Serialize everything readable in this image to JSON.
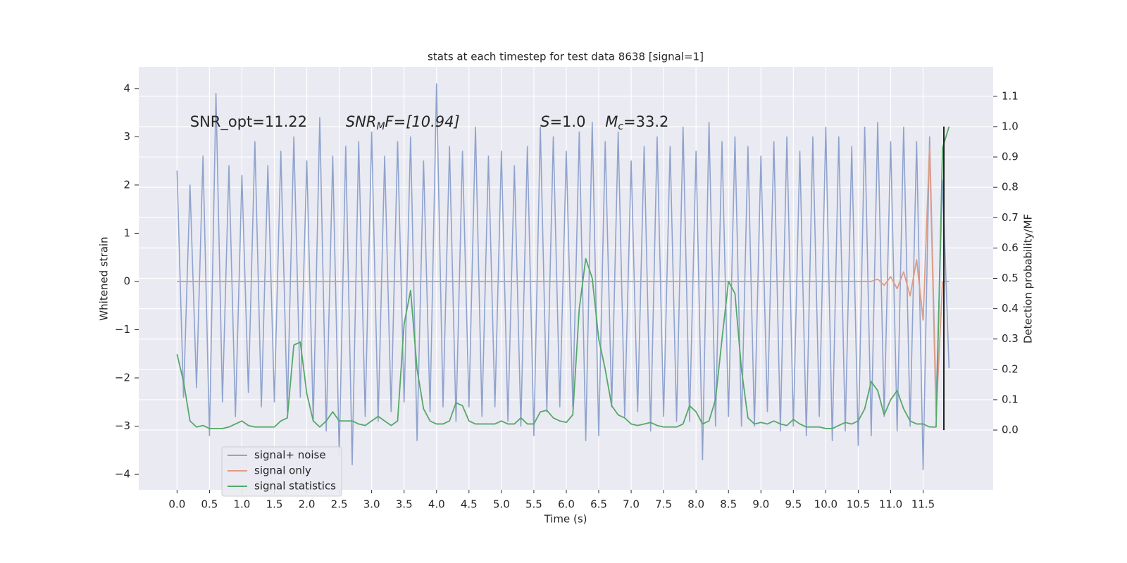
{
  "chart_data": {
    "type": "line",
    "title": "stats at each timestep for test data 8638 [signal=1]",
    "xlabel": "Time (s)",
    "ylabel": "Whitened strain",
    "y2label": "Detection probability/MF",
    "annotations": [
      {
        "text": "SNR_opt=11.22",
        "x": 0.2,
        "y": 3.3
      },
      {
        "main": "SNR",
        "sub": "M",
        "tail": "F=[10.94]",
        "x": 2.6,
        "y": 3.3
      },
      {
        "main": "S",
        "tail": "=1.0",
        "x": 5.6,
        "y": 3.3
      },
      {
        "main": "M",
        "sub": "c",
        "tail": "=33.2",
        "x": 6.6,
        "y": 3.3
      }
    ],
    "x": [
      0.0,
      0.1,
      0.2,
      0.3,
      0.4,
      0.5,
      0.6,
      0.7,
      0.8,
      0.9,
      1.0,
      1.1,
      1.2,
      1.3,
      1.4,
      1.5,
      1.6,
      1.7,
      1.8,
      1.9,
      2.0,
      2.1,
      2.2,
      2.3,
      2.4,
      2.5,
      2.6,
      2.7,
      2.8,
      2.9,
      3.0,
      3.1,
      3.2,
      3.3,
      3.4,
      3.5,
      3.6,
      3.7,
      3.8,
      3.9,
      4.0,
      4.1,
      4.2,
      4.3,
      4.4,
      4.5,
      4.6,
      4.7,
      4.8,
      4.9,
      5.0,
      5.1,
      5.2,
      5.3,
      5.4,
      5.5,
      5.6,
      5.7,
      5.8,
      5.9,
      6.0,
      6.1,
      6.2,
      6.3,
      6.4,
      6.5,
      6.6,
      6.7,
      6.8,
      6.9,
      7.0,
      7.1,
      7.2,
      7.3,
      7.4,
      7.5,
      7.6,
      7.7,
      7.8,
      7.9,
      8.0,
      8.1,
      8.2,
      8.3,
      8.4,
      8.5,
      8.6,
      8.7,
      8.8,
      8.9,
      9.0,
      9.1,
      9.2,
      9.3,
      9.4,
      9.5,
      9.6,
      9.7,
      9.8,
      9.9,
      10.0,
      10.1,
      10.2,
      10.3,
      10.4,
      10.5,
      10.6,
      10.7,
      10.8,
      10.9,
      11.0,
      11.1,
      11.2,
      11.3,
      11.4,
      11.5,
      11.6,
      11.7,
      11.8,
      11.9
    ],
    "series": [
      {
        "name": "signal+ noise",
        "color": "#8fa3cd",
        "axis": "y",
        "values": [
          2.3,
          -2.4,
          2.0,
          -2.2,
          2.6,
          -3.2,
          3.9,
          -2.5,
          2.4,
          -2.8,
          2.2,
          -2.3,
          2.9,
          -2.6,
          2.4,
          -2.5,
          2.7,
          -2.7,
          3.0,
          -2.4,
          2.5,
          -2.9,
          3.4,
          -3.1,
          2.6,
          -3.6,
          2.8,
          -3.8,
          2.9,
          -2.8,
          3.1,
          -2.9,
          2.6,
          -2.7,
          2.9,
          -2.5,
          3.0,
          -3.3,
          2.5,
          -2.7,
          4.1,
          -2.6,
          2.8,
          -2.9,
          2.7,
          -2.6,
          3.2,
          -2.8,
          2.6,
          -2.6,
          2.7,
          -2.9,
          2.4,
          -3.0,
          2.8,
          -3.2,
          3.2,
          -2.7,
          3.0,
          -2.6,
          2.7,
          -2.6,
          3.1,
          -3.3,
          3.3,
          -3.2,
          2.9,
          -2.6,
          3.1,
          -2.8,
          2.5,
          -2.7,
          2.8,
          -3.1,
          3.0,
          -2.8,
          2.8,
          -2.9,
          3.2,
          -2.9,
          2.7,
          -3.7,
          3.3,
          -3.0,
          2.9,
          -2.8,
          3.0,
          -3.0,
          2.8,
          -3.0,
          2.6,
          -2.7,
          2.9,
          -3.1,
          3.0,
          -3.0,
          2.7,
          -3.2,
          3.0,
          -2.8,
          3.2,
          -3.3,
          3.0,
          -3.1,
          2.8,
          -3.4,
          3.2,
          -3.2,
          3.3,
          -2.8,
          2.9,
          -3.1,
          3.2,
          -3.0,
          2.9,
          -3.9,
          3.0,
          -2.5,
          2.1,
          -1.8
        ]
      },
      {
        "name": "signal only",
        "color": "#dd9c84",
        "axis": "y",
        "values": [
          0,
          0,
          0,
          0,
          0,
          0,
          0,
          0,
          0,
          0,
          0,
          0,
          0,
          0,
          0,
          0,
          0,
          0,
          0,
          0,
          0,
          0,
          0,
          0,
          0,
          0,
          0,
          0,
          0,
          0,
          0,
          0,
          0,
          0,
          0,
          0,
          0,
          0,
          0,
          0,
          0,
          0,
          0,
          0,
          0,
          0,
          0,
          0,
          0,
          0,
          0,
          0,
          0,
          0,
          0,
          0,
          0,
          0,
          0,
          0,
          0,
          0,
          0,
          0,
          0,
          0,
          0,
          0,
          0,
          0,
          0,
          0,
          0,
          0,
          0,
          0,
          0,
          0,
          0,
          0,
          0,
          0,
          0,
          0,
          0,
          0,
          0,
          0,
          0,
          0,
          0,
          0,
          0,
          0,
          0,
          0,
          0,
          0,
          0,
          0,
          0,
          0,
          0,
          0,
          0,
          0,
          0,
          0,
          0.05,
          -0.08,
          0.1,
          -0.15,
          0.2,
          -0.3,
          0.45,
          -0.8,
          2.8,
          -2.8,
          0,
          0
        ]
      },
      {
        "name": "signal statistics",
        "color": "#55a868",
        "axis": "y2",
        "values": [
          0.25,
          0.16,
          0.03,
          0.01,
          0.015,
          0.005,
          0.005,
          0.005,
          0.01,
          0.02,
          0.03,
          0.015,
          0.01,
          0.01,
          0.01,
          0.01,
          0.03,
          0.04,
          0.28,
          0.29,
          0.12,
          0.03,
          0.01,
          0.03,
          0.06,
          0.03,
          0.03,
          0.03,
          0.02,
          0.015,
          0.03,
          0.045,
          0.03,
          0.015,
          0.03,
          0.35,
          0.46,
          0.2,
          0.07,
          0.03,
          0.02,
          0.02,
          0.03,
          0.09,
          0.08,
          0.03,
          0.02,
          0.02,
          0.02,
          0.02,
          0.03,
          0.02,
          0.02,
          0.04,
          0.02,
          0.02,
          0.06,
          0.065,
          0.04,
          0.03,
          0.025,
          0.05,
          0.4,
          0.565,
          0.5,
          0.3,
          0.2,
          0.08,
          0.05,
          0.04,
          0.02,
          0.015,
          0.02,
          0.025,
          0.015,
          0.01,
          0.01,
          0.01,
          0.02,
          0.08,
          0.06,
          0.02,
          0.03,
          0.1,
          0.3,
          0.49,
          0.45,
          0.2,
          0.04,
          0.02,
          0.025,
          0.02,
          0.03,
          0.02,
          0.015,
          0.035,
          0.02,
          0.01,
          0.01,
          0.01,
          0.005,
          0.005,
          0.015,
          0.025,
          0.02,
          0.03,
          0.07,
          0.16,
          0.13,
          0.05,
          0.1,
          0.13,
          0.07,
          0.03,
          0.02,
          0.02,
          0.01,
          0.01,
          0.93,
          1.0
        ]
      }
    ],
    "vertical_line": {
      "x": 11.82,
      "ymin": 0,
      "ymax": 1,
      "axis": "y2",
      "color": "#222222"
    },
    "xlim": [
      -0.59,
      12.58
    ],
    "ylim": [
      -4.32,
      4.45
    ],
    "y2lim": [
      -0.197,
      1.197
    ],
    "xticks": [
      {
        "value": 0,
        "label": "0.0"
      },
      0.5,
      {
        "value": 1,
        "label": "1.0"
      },
      1.5,
      {
        "value": 2,
        "label": "2.0"
      },
      2.5,
      {
        "value": 3,
        "label": "3.0"
      },
      3.5,
      {
        "value": 4,
        "label": "4.0"
      },
      4.5,
      {
        "value": 5,
        "label": "5.0"
      },
      5.5,
      {
        "value": 6,
        "label": "6.0"
      },
      6.5,
      {
        "value": 7,
        "label": "7.0"
      },
      7.5,
      {
        "value": 8,
        "label": "8.0"
      },
      8.5,
      {
        "value": 9,
        "label": "9.0"
      },
      9.5,
      {
        "value": 10,
        "label": "10.0"
      },
      10.5,
      {
        "value": 11,
        "label": "11.0"
      },
      11.5
    ],
    "yticks": [
      {
        "value": -4,
        "label": "−4"
      },
      {
        "value": -3,
        "label": "−3"
      },
      {
        "value": -2,
        "label": "−2"
      },
      {
        "value": -1,
        "label": "−1"
      },
      0,
      1,
      2,
      3,
      4
    ],
    "y2ticks": [
      {
        "value": 0,
        "label": "0.0"
      },
      0.1,
      0.2,
      0.3,
      0.4,
      0.5,
      0.6,
      0.7,
      0.8,
      0.9,
      {
        "value": 1,
        "label": "1.0"
      },
      1.1
    ],
    "grid": true,
    "legend": "lower left",
    "background": "#eaeaf2"
  }
}
